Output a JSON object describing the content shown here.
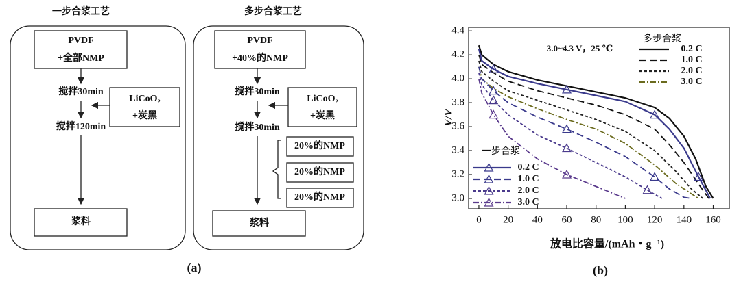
{
  "panel_a": {
    "label": "(a)",
    "one_step": {
      "title": "一步合浆工艺",
      "start": [
        "PVDF",
        "+全部NMP"
      ],
      "step1": "搅拌30min",
      "side": [
        "LiCoO₂",
        "+炭黑"
      ],
      "step2": "搅拌120min",
      "end": "浆料"
    },
    "multi_step": {
      "title": "多步合浆工艺",
      "start": [
        "PVDF",
        "+40%的NMP"
      ],
      "step1": "搅拌30min",
      "side": [
        "LiCoO₂",
        "+炭黑"
      ],
      "step2": "搅拌30min",
      "additions": [
        "20%的NMP",
        "20%的NMP",
        "20%的NMP"
      ],
      "end": "浆料"
    }
  },
  "chart_data": {
    "type": "line",
    "label": "(b)",
    "annotation": "3.0~4.3 V，25 ℃",
    "x_label": "放电比容量/(mAh・g⁻¹)",
    "y_label": "V/V",
    "xlim": [
      -7,
      171
    ],
    "ylim": [
      2.914,
      4.43
    ],
    "xticks": [
      0,
      20,
      40,
      60,
      80,
      100,
      120,
      140,
      160
    ],
    "yticks": [
      {
        "value": 3,
        "label": "3.0"
      },
      3.2,
      3.4,
      3.6,
      3.8,
      {
        "value": 4,
        "label": "4.0"
      },
      4.2,
      4.4
    ],
    "series_groups": [
      {
        "name": "多步合浆",
        "series": [
          {
            "name": "0.2 C",
            "color": "#111111",
            "dash": "solid",
            "x": [
              0,
              2,
              10,
              20,
              40,
              60,
              80,
              100,
              120,
              130,
              140,
              148,
              155,
              160
            ],
            "values": [
              4.28,
              4.2,
              4.12,
              4.06,
              3.99,
              3.94,
              3.89,
              3.84,
              3.76,
              3.67,
              3.52,
              3.33,
              3.1,
              3.0
            ]
          },
          {
            "name": "1.0 C",
            "color": "#111111",
            "dash": "dashed",
            "x": [
              0,
              2,
              10,
              20,
              40,
              60,
              80,
              100,
              120,
              130,
              140,
              150,
              157
            ],
            "values": [
              4.2,
              4.12,
              4.05,
              3.98,
              3.9,
              3.84,
              3.78,
              3.7,
              3.58,
              3.45,
              3.3,
              3.12,
              3.0
            ]
          },
          {
            "name": "2.0 C",
            "color": "#222222",
            "dash": "dotted",
            "x": [
              0,
              2,
              10,
              20,
              40,
              60,
              80,
              100,
              120,
              135,
              145,
              153
            ],
            "values": [
              4.15,
              4.06,
              3.98,
              3.9,
              3.82,
              3.74,
              3.66,
              3.56,
              3.4,
              3.22,
              3.08,
              3.0
            ]
          },
          {
            "name": "3.0 C",
            "color": "#6b6b1e",
            "dash": "dashdot",
            "x": [
              0,
              2,
              10,
              20,
              40,
              60,
              80,
              100,
              120,
              135,
              150
            ],
            "values": [
              4.1,
              4.0,
              3.92,
              3.85,
              3.75,
              3.66,
              3.58,
              3.46,
              3.28,
              3.12,
              3.0
            ]
          }
        ]
      },
      {
        "name": "一步合浆",
        "marker": "triangle",
        "series": [
          {
            "name": "0.2 C",
            "color": "#3a3a8c",
            "dash": "solid",
            "x": [
              0,
              2,
              10,
              20,
              40,
              60,
              80,
              100,
              120,
              130,
              140,
              150,
              158
            ],
            "values": [
              4.25,
              4.15,
              4.08,
              4.02,
              3.96,
              3.91,
              3.86,
              3.81,
              3.7,
              3.58,
              3.42,
              3.18,
              3.0
            ]
          },
          {
            "name": "1.0 C",
            "color": "#3a3a8c",
            "dash": "dashed",
            "x": [
              0,
              2,
              10,
              20,
              40,
              60,
              80,
              100,
              120,
              130,
              140,
              145
            ],
            "values": [
              4.1,
              4.0,
              3.9,
              3.8,
              3.68,
              3.58,
              3.47,
              3.35,
              3.18,
              3.08,
              3.01,
              3.0
            ]
          },
          {
            "name": "2.0 C",
            "color": "#4a3a8c",
            "dash": "dotted",
            "x": [
              0,
              2,
              10,
              20,
              40,
              60,
              80,
              100,
              115,
              125
            ],
            "values": [
              4.05,
              3.95,
              3.82,
              3.7,
              3.53,
              3.42,
              3.3,
              3.18,
              3.07,
              3.0
            ]
          },
          {
            "name": "3.0 C",
            "color": "#5a3a8c",
            "dash": "dashdot",
            "x": [
              0,
              2,
              10,
              20,
              40,
              60,
              80,
              90,
              100
            ],
            "values": [
              4.0,
              3.88,
              3.7,
              3.52,
              3.33,
              3.2,
              3.1,
              3.05,
              3.0
            ]
          }
        ]
      }
    ]
  }
}
